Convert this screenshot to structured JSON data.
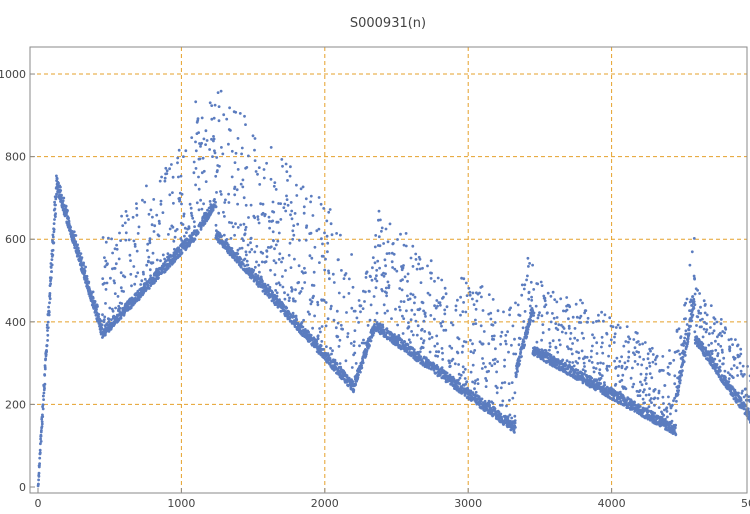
{
  "chart_data": {
    "type": "scatter",
    "title": "S000931(n)",
    "xlabel": "",
    "ylabel": "",
    "xlim": [
      0,
      5000
    ],
    "ylim": [
      0,
      1080
    ],
    "x_ticks": [
      0,
      1000,
      2000,
      3000,
      4000,
      5000
    ],
    "y_ticks": [
      0,
      200,
      400,
      600,
      800,
      1000
    ],
    "grid": true,
    "grid_lines": {
      "x": [
        1000,
        2000,
        3000,
        4000,
        5000
      ],
      "y": [
        200,
        400,
        600,
        800,
        1000
      ]
    },
    "legend": "none",
    "points_shown": 5000,
    "segments": [
      {
        "x_start": 1,
        "x_end": 130,
        "base_start": 0,
        "base_end": 720,
        "rise": 60,
        "decay": 0
      },
      {
        "x_start": 130,
        "x_end": 450,
        "base_start": 720,
        "base_end": 360,
        "rise": 40,
        "decay": 0.003
      },
      {
        "x_start": 450,
        "x_end": 1100,
        "base_start": 360,
        "base_end": 600,
        "rise": 260,
        "decay": 0.004
      },
      {
        "x_start": 1100,
        "x_end": 1240,
        "base_start": 600,
        "base_end": 680,
        "rise": 350,
        "decay": 0.006
      },
      {
        "x_start": 1240,
        "x_end": 2200,
        "base_start": 600,
        "base_end": 230,
        "rise": 380,
        "decay": 0.0025
      },
      {
        "x_start": 2200,
        "x_end": 2350,
        "base_start": 230,
        "base_end": 380,
        "rise": 200,
        "decay": 0.003
      },
      {
        "x_start": 2350,
        "x_end": 3330,
        "base_start": 380,
        "base_end": 130,
        "rise": 300,
        "decay": 0.0018
      },
      {
        "x_start": 3330,
        "x_end": 3450,
        "base_start": 260,
        "base_end": 420,
        "rise": 200,
        "decay": 0.004
      },
      {
        "x_start": 3450,
        "x_end": 4450,
        "base_start": 320,
        "base_end": 125,
        "rise": 200,
        "decay": 0.0015
      },
      {
        "x_start": 4450,
        "x_end": 4580,
        "base_start": 200,
        "base_end": 440,
        "rise": 170,
        "decay": 0.004
      },
      {
        "x_start": 4580,
        "x_end": 5000,
        "base_start": 350,
        "base_end": 140,
        "rise": 150,
        "decay": 0.0015
      }
    ],
    "colors": {
      "points": "#5b7cbf",
      "grid": "#e5a12b",
      "axis": "#8a8a8a",
      "title": "#444444"
    }
  }
}
